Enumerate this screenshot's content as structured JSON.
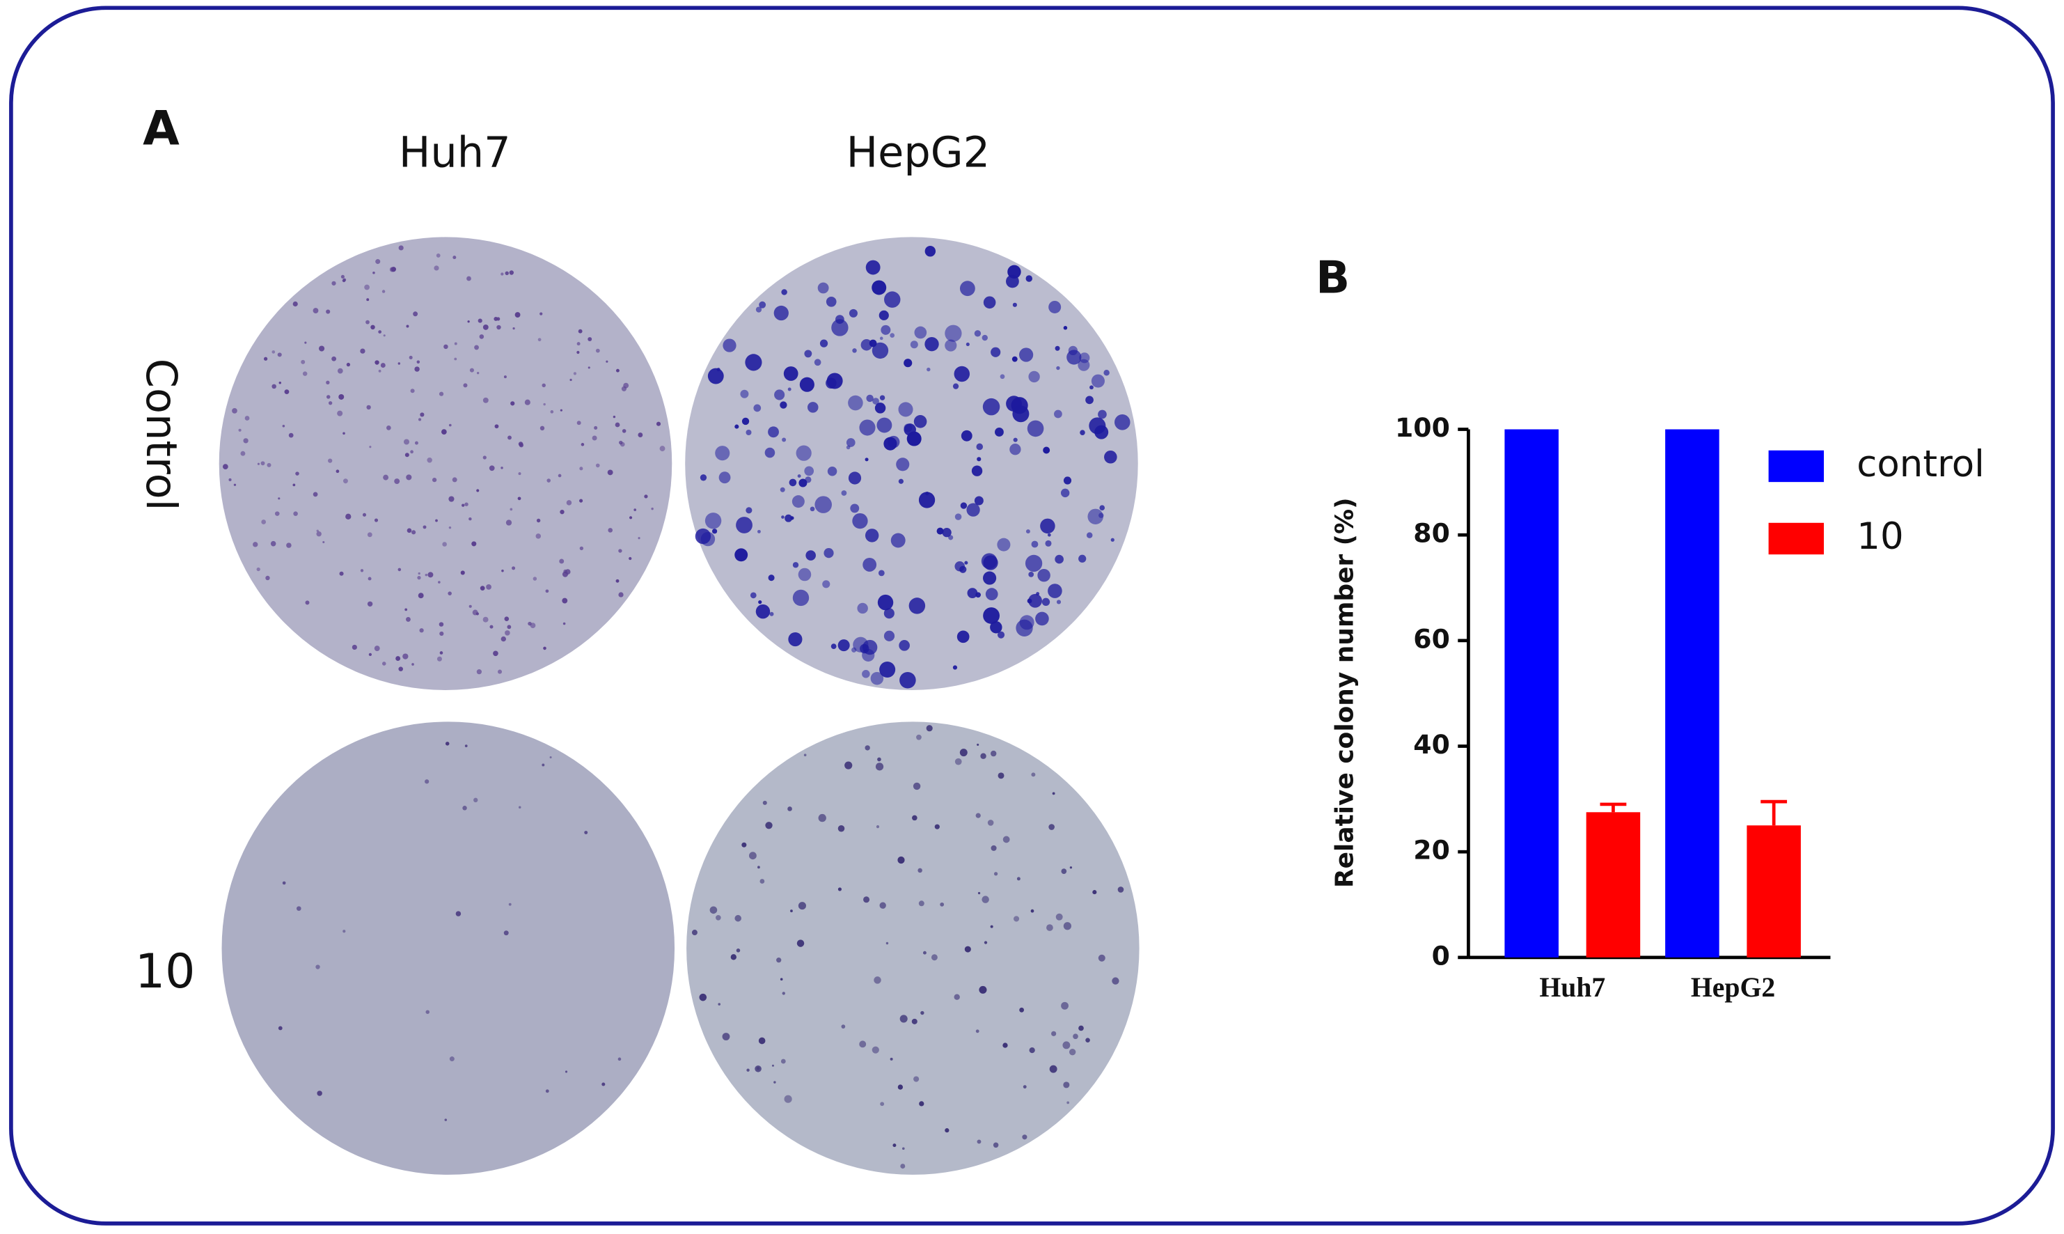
{
  "panel_a": {
    "label": "A",
    "columns": [
      "Huh7",
      "HepG2"
    ],
    "rows": [
      "Control",
      "10"
    ]
  },
  "panel_b": {
    "label": "B"
  },
  "chart_data": {
    "type": "bar",
    "y_label": "Relative colony number (%)",
    "categories": [
      "Huh7",
      "HepG2"
    ],
    "series": [
      {
        "name": "control",
        "color": "#0000ff",
        "values": [
          100,
          100
        ]
      },
      {
        "name": "10",
        "color": "#ff0000",
        "values": [
          27.5,
          25
        ],
        "errors": [
          1.5,
          4.5
        ]
      }
    ],
    "ylim": [
      0,
      100
    ],
    "yticks": [
      0,
      20,
      40,
      60,
      80,
      100
    ],
    "legend": "upper right",
    "grid": false
  }
}
